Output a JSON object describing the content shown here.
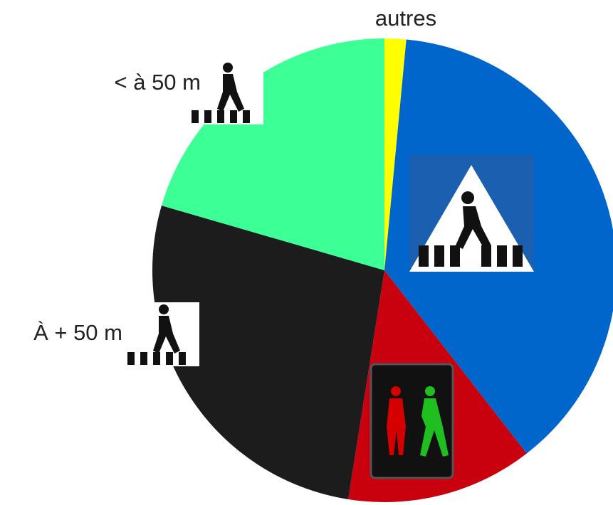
{
  "chart_data": {
    "type": "pie",
    "categories": [
      "autres",
      null,
      null,
      "À + 50 m",
      "< à 50 m"
    ],
    "values": [
      1.5,
      38,
      13,
      27,
      20.5
    ],
    "colors": [
      "#ffff00",
      "#0066cc",
      "#c9000e",
      "#1c1c1c",
      "#3cff96"
    ]
  }
}
